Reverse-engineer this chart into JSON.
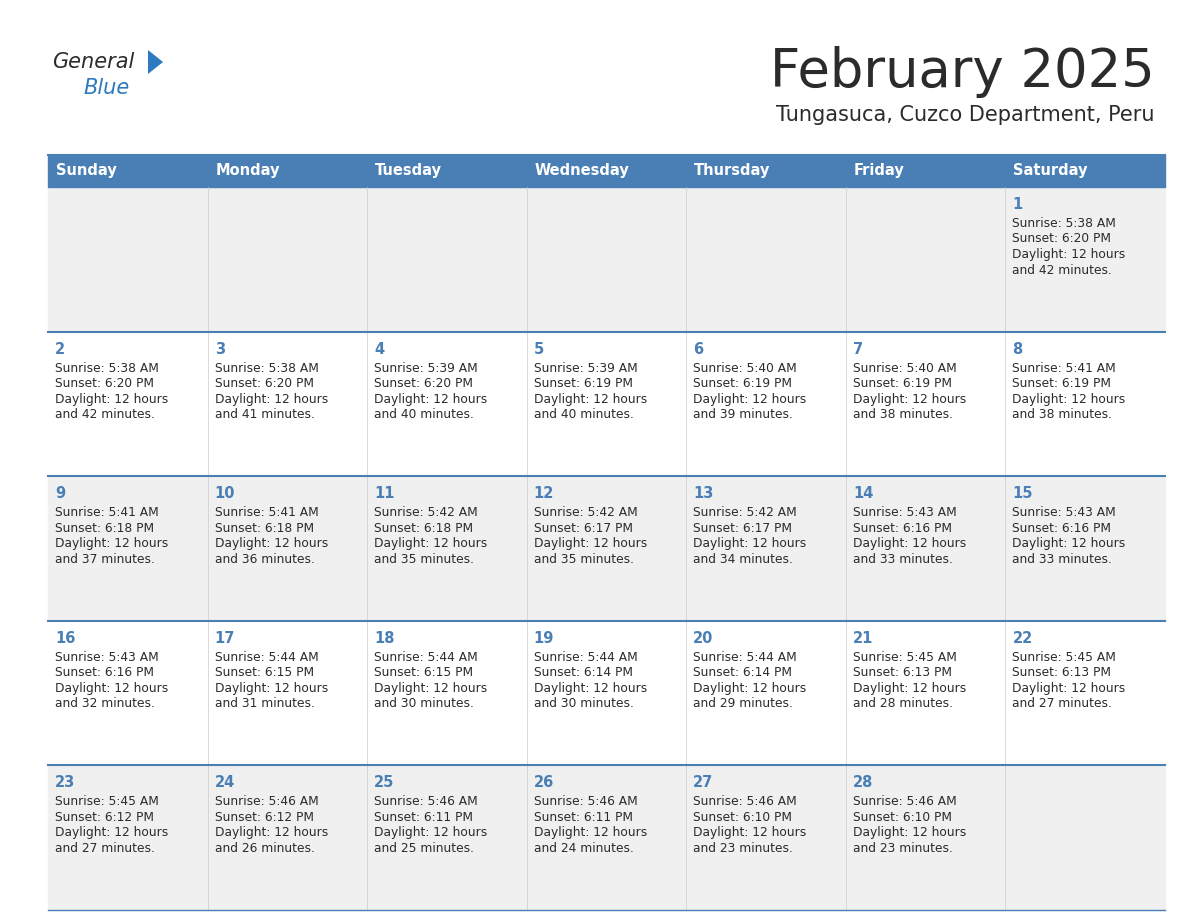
{
  "title": "February 2025",
  "subtitle": "Tungasuca, Cuzco Department, Peru",
  "header_bg": "#4a7fb5",
  "header_text_color": "#ffffff",
  "row_bg_odd": "#f0f0f0",
  "row_bg_even": "#ffffff",
  "border_color": "#4a7fb5",
  "grid_color": "#cccccc",
  "day_headers": [
    "Sunday",
    "Monday",
    "Tuesday",
    "Wednesday",
    "Thursday",
    "Friday",
    "Saturday"
  ],
  "title_color": "#2b2b2b",
  "subtitle_color": "#2b2b2b",
  "cell_text_color": "#2b2b2b",
  "day_num_color": "#4a7fb5",
  "calendar_data": [
    [
      null,
      null,
      null,
      null,
      null,
      null,
      {
        "day": "1",
        "sunrise": "5:38 AM",
        "sunset": "6:20 PM",
        "daylight_line1": "Daylight: 12 hours",
        "daylight_line2": "and 42 minutes."
      }
    ],
    [
      {
        "day": "2",
        "sunrise": "5:38 AM",
        "sunset": "6:20 PM",
        "daylight_line1": "Daylight: 12 hours",
        "daylight_line2": "and 42 minutes."
      },
      {
        "day": "3",
        "sunrise": "5:38 AM",
        "sunset": "6:20 PM",
        "daylight_line1": "Daylight: 12 hours",
        "daylight_line2": "and 41 minutes."
      },
      {
        "day": "4",
        "sunrise": "5:39 AM",
        "sunset": "6:20 PM",
        "daylight_line1": "Daylight: 12 hours",
        "daylight_line2": "and 40 minutes."
      },
      {
        "day": "5",
        "sunrise": "5:39 AM",
        "sunset": "6:19 PM",
        "daylight_line1": "Daylight: 12 hours",
        "daylight_line2": "and 40 minutes."
      },
      {
        "day": "6",
        "sunrise": "5:40 AM",
        "sunset": "6:19 PM",
        "daylight_line1": "Daylight: 12 hours",
        "daylight_line2": "and 39 minutes."
      },
      {
        "day": "7",
        "sunrise": "5:40 AM",
        "sunset": "6:19 PM",
        "daylight_line1": "Daylight: 12 hours",
        "daylight_line2": "and 38 minutes."
      },
      {
        "day": "8",
        "sunrise": "5:41 AM",
        "sunset": "6:19 PM",
        "daylight_line1": "Daylight: 12 hours",
        "daylight_line2": "and 38 minutes."
      }
    ],
    [
      {
        "day": "9",
        "sunrise": "5:41 AM",
        "sunset": "6:18 PM",
        "daylight_line1": "Daylight: 12 hours",
        "daylight_line2": "and 37 minutes."
      },
      {
        "day": "10",
        "sunrise": "5:41 AM",
        "sunset": "6:18 PM",
        "daylight_line1": "Daylight: 12 hours",
        "daylight_line2": "and 36 minutes."
      },
      {
        "day": "11",
        "sunrise": "5:42 AM",
        "sunset": "6:18 PM",
        "daylight_line1": "Daylight: 12 hours",
        "daylight_line2": "and 35 minutes."
      },
      {
        "day": "12",
        "sunrise": "5:42 AM",
        "sunset": "6:17 PM",
        "daylight_line1": "Daylight: 12 hours",
        "daylight_line2": "and 35 minutes."
      },
      {
        "day": "13",
        "sunrise": "5:42 AM",
        "sunset": "6:17 PM",
        "daylight_line1": "Daylight: 12 hours",
        "daylight_line2": "and 34 minutes."
      },
      {
        "day": "14",
        "sunrise": "5:43 AM",
        "sunset": "6:16 PM",
        "daylight_line1": "Daylight: 12 hours",
        "daylight_line2": "and 33 minutes."
      },
      {
        "day": "15",
        "sunrise": "5:43 AM",
        "sunset": "6:16 PM",
        "daylight_line1": "Daylight: 12 hours",
        "daylight_line2": "and 33 minutes."
      }
    ],
    [
      {
        "day": "16",
        "sunrise": "5:43 AM",
        "sunset": "6:16 PM",
        "daylight_line1": "Daylight: 12 hours",
        "daylight_line2": "and 32 minutes."
      },
      {
        "day": "17",
        "sunrise": "5:44 AM",
        "sunset": "6:15 PM",
        "daylight_line1": "Daylight: 12 hours",
        "daylight_line2": "and 31 minutes."
      },
      {
        "day": "18",
        "sunrise": "5:44 AM",
        "sunset": "6:15 PM",
        "daylight_line1": "Daylight: 12 hours",
        "daylight_line2": "and 30 minutes."
      },
      {
        "day": "19",
        "sunrise": "5:44 AM",
        "sunset": "6:14 PM",
        "daylight_line1": "Daylight: 12 hours",
        "daylight_line2": "and 30 minutes."
      },
      {
        "day": "20",
        "sunrise": "5:44 AM",
        "sunset": "6:14 PM",
        "daylight_line1": "Daylight: 12 hours",
        "daylight_line2": "and 29 minutes."
      },
      {
        "day": "21",
        "sunrise": "5:45 AM",
        "sunset": "6:13 PM",
        "daylight_line1": "Daylight: 12 hours",
        "daylight_line2": "and 28 minutes."
      },
      {
        "day": "22",
        "sunrise": "5:45 AM",
        "sunset": "6:13 PM",
        "daylight_line1": "Daylight: 12 hours",
        "daylight_line2": "and 27 minutes."
      }
    ],
    [
      {
        "day": "23",
        "sunrise": "5:45 AM",
        "sunset": "6:12 PM",
        "daylight_line1": "Daylight: 12 hours",
        "daylight_line2": "and 27 minutes."
      },
      {
        "day": "24",
        "sunrise": "5:46 AM",
        "sunset": "6:12 PM",
        "daylight_line1": "Daylight: 12 hours",
        "daylight_line2": "and 26 minutes."
      },
      {
        "day": "25",
        "sunrise": "5:46 AM",
        "sunset": "6:11 PM",
        "daylight_line1": "Daylight: 12 hours",
        "daylight_line2": "and 25 minutes."
      },
      {
        "day": "26",
        "sunrise": "5:46 AM",
        "sunset": "6:11 PM",
        "daylight_line1": "Daylight: 12 hours",
        "daylight_line2": "and 24 minutes."
      },
      {
        "day": "27",
        "sunrise": "5:46 AM",
        "sunset": "6:10 PM",
        "daylight_line1": "Daylight: 12 hours",
        "daylight_line2": "and 23 minutes."
      },
      {
        "day": "28",
        "sunrise": "5:46 AM",
        "sunset": "6:10 PM",
        "daylight_line1": "Daylight: 12 hours",
        "daylight_line2": "and 23 minutes."
      },
      null
    ]
  ]
}
